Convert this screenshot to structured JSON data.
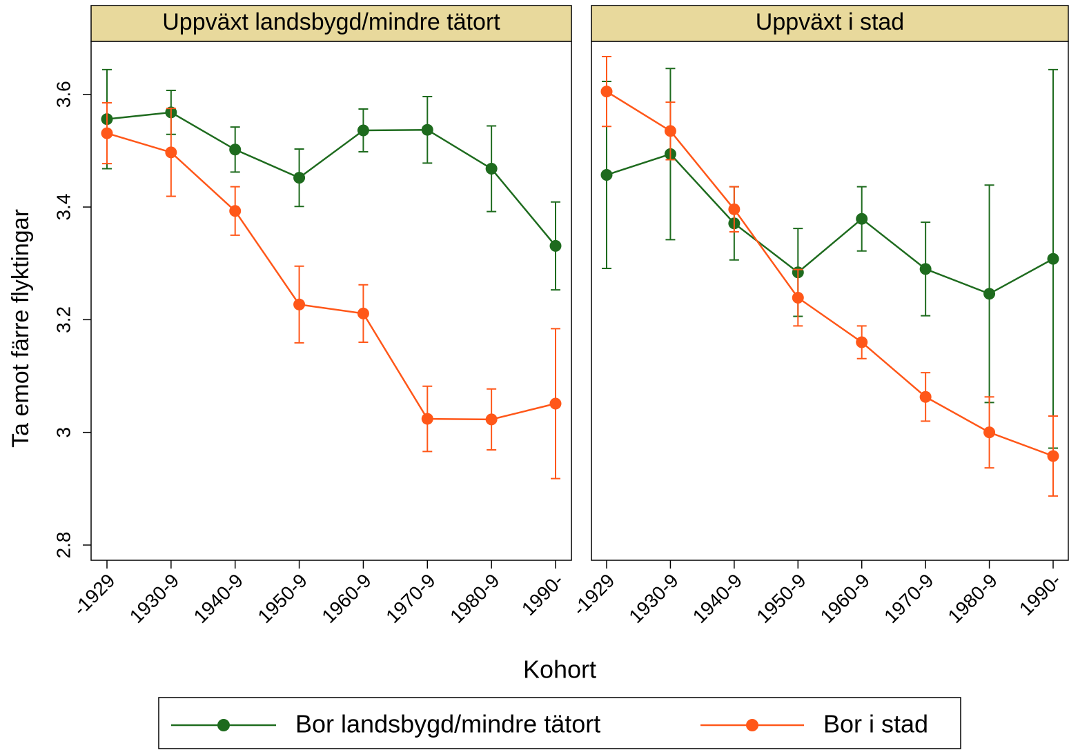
{
  "ylabel": "Ta emot färre flyktingar",
  "xlabel": "Kohort",
  "chart_data": [
    {
      "type": "line",
      "title": "Uppväxt landsbygd/mindre tätort",
      "categories": [
        "-1929",
        "1930-9",
        "1940-9",
        "1950-9",
        "1960-9",
        "1970-9",
        "1980-9",
        "1990-"
      ],
      "series": [
        {
          "name": "Bor landsbygd/mindre tätort",
          "color": "#1e6b1e",
          "values": [
            3.556,
            3.568,
            3.502,
            3.452,
            3.536,
            3.537,
            3.468,
            3.331
          ],
          "errors": [
            0.088,
            0.039,
            0.04,
            0.051,
            0.038,
            0.059,
            0.076,
            0.078
          ]
        },
        {
          "name": "Bor i stad",
          "color": "#ff5719",
          "values": [
            3.531,
            3.497,
            3.393,
            3.227,
            3.211,
            3.024,
            3.023,
            3.051
          ],
          "errors": [
            0.054,
            0.078,
            0.043,
            0.068,
            0.051,
            0.058,
            0.054,
            0.133
          ]
        }
      ],
      "ylim": [
        2.773,
        3.694
      ],
      "yticks": [
        2.8,
        3,
        3.2,
        3.4,
        3.6
      ]
    },
    {
      "type": "line",
      "title": "Uppväxt i stad",
      "categories": [
        "-1929",
        "1930-9",
        "1940-9",
        "1950-9",
        "1960-9",
        "1970-9",
        "1980-9",
        "1990-"
      ],
      "series": [
        {
          "color": "#1e6b1e",
          "values": [
            3.457,
            3.494,
            3.371,
            3.284,
            3.379,
            3.29,
            3.246,
            3.308
          ],
          "errors": [
            0.166,
            0.152,
            0.065,
            0.078,
            0.057,
            0.083,
            0.193,
            0.336
          ]
        },
        {
          "color": "#ff5719",
          "values": [
            3.605,
            3.535,
            3.396,
            3.239,
            3.16,
            3.063,
            3.0,
            2.958
          ],
          "errors": [
            0.062,
            0.051,
            0.04,
            0.05,
            0.029,
            0.043,
            0.063,
            0.071
          ]
        }
      ],
      "ylim": [
        2.773,
        3.694
      ]
    }
  ]
}
